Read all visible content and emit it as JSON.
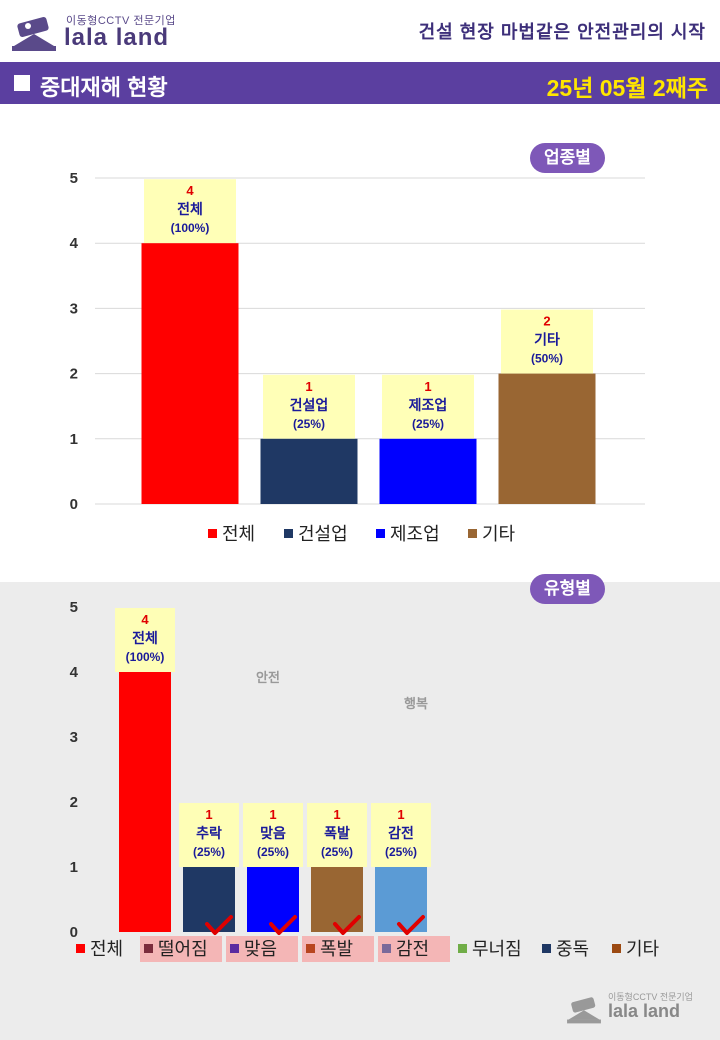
{
  "header": {
    "logo_small": "이동형CCTV 전문기업",
    "logo_big": "lala land",
    "slogan": "건설 현장 마법같은 안전관리의 시작"
  },
  "titlebar": {
    "title": "중대재해 현황",
    "week": "25년 05월 2째주"
  },
  "chart_data": [
    {
      "type": "bar",
      "badge": "업종별",
      "categories": [
        "전체",
        "건설업",
        "제조업",
        "기타"
      ],
      "values": [
        4,
        1,
        1,
        2
      ],
      "percents": [
        "(100%)",
        "(25%)",
        "(25%)",
        "(50%)"
      ],
      "colors": [
        "#ff0000",
        "#1f3864",
        "#0000ff",
        "#996633"
      ],
      "ylim": [
        0,
        5
      ],
      "yticks": [
        "0",
        "1",
        "2",
        "3",
        "4",
        "5"
      ],
      "grid": true,
      "legend": [
        "전체",
        "건설업",
        "제조업",
        "기타"
      ],
      "legend_colors": [
        "#ff0000",
        "#1f3864",
        "#0000ff",
        "#996633"
      ],
      "legend_position": "bottom"
    },
    {
      "type": "bar",
      "badge": "유형별",
      "categories": [
        "전체",
        "추락",
        "맞음",
        "폭발",
        "감전"
      ],
      "values": [
        4,
        1,
        1,
        1,
        1
      ],
      "percents": [
        "(100%)",
        "(25%)",
        "(25%)",
        "(25%)",
        "(25%)"
      ],
      "colors": [
        "#ff0000",
        "#1f3864",
        "#0000ff",
        "#996633",
        "#5b9bd5"
      ],
      "ylim": [
        0,
        5
      ],
      "yticks": [
        "0",
        "1",
        "2",
        "3",
        "4",
        "5"
      ],
      "grid": false,
      "legend": [
        "전체",
        "떨어짐",
        "맞음",
        "폭발",
        "감전",
        "무너짐",
        "중독",
        "기타"
      ],
      "legend_colors": [
        "#ff0000",
        "#7b2c3c",
        "#5a2aa0",
        "#b8451f",
        "#7a6a9a",
        "#70ad47",
        "#1f3864",
        "#9c4a12"
      ],
      "legend_highlight": [
        false,
        true,
        true,
        true,
        true,
        false,
        false,
        false
      ],
      "legend_position": "bottom",
      "bg_labels": [
        "안전",
        "행복"
      ]
    }
  ],
  "watermark": {
    "small": "이동형CCTV 전문기업",
    "big": "lala land"
  }
}
